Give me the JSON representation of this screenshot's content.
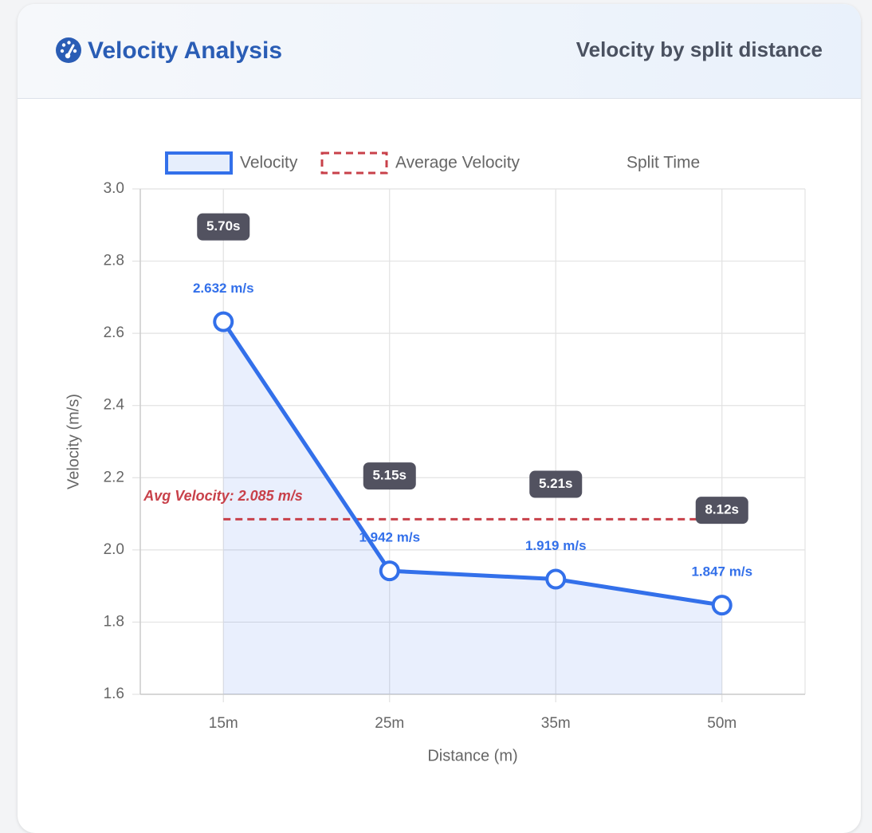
{
  "header": {
    "title": "Velocity Analysis",
    "subtitle": "Velocity by split distance"
  },
  "chart_data": {
    "type": "line",
    "x_label": "Distance (m)",
    "y_label": "Velocity (m/s)",
    "categories": [
      "15m",
      "25m",
      "35m",
      "50m"
    ],
    "series": [
      {
        "name": "Velocity",
        "color": "#3370ea",
        "values": [
          2.632,
          1.942,
          1.919,
          1.847
        ],
        "value_labels": [
          "2.632 m/s",
          "1.942 m/s",
          "1.919 m/s",
          "1.847 m/s"
        ]
      },
      {
        "name": "Split Time",
        "color": "#525260",
        "values": [
          5.7,
          5.15,
          5.21,
          8.12
        ],
        "value_labels": [
          "5.70s",
          "5.15s",
          "5.21s",
          "8.12s"
        ]
      }
    ],
    "average": {
      "name": "Average Velocity",
      "value": 2.085,
      "label": "Avg Velocity: 2.085 m/s",
      "color": "#c8414a"
    },
    "ylim": [
      1.6,
      3.0
    ],
    "yticks": [
      1.6,
      1.8,
      {
        "value": 2.0,
        "label": "2.0"
      },
      2.2,
      2.4,
      2.6,
      2.8,
      {
        "value": 3.0,
        "label": "3.0"
      }
    ],
    "grid": true,
    "legend": "top"
  }
}
